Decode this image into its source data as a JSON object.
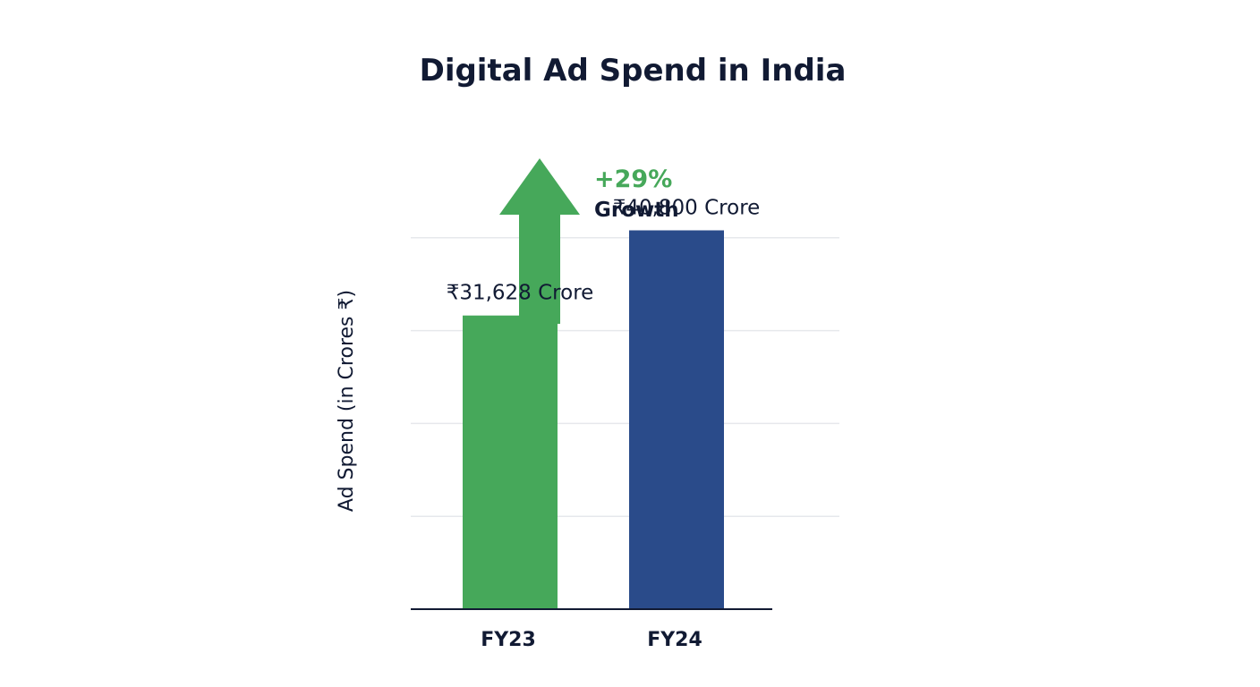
{
  "chart_data": {
    "type": "bar",
    "title": "Digital Ad Spend in India",
    "xlabel": "",
    "ylabel": "Ad Spend (in Crores ₹)",
    "categories": [
      "FY23",
      "FY24"
    ],
    "values": [
      31628,
      40800
    ],
    "data_labels": [
      "₹31,628 Crore",
      "₹40,800 Crore"
    ],
    "bar_colors": [
      "#46a85a",
      "#2a4b8a"
    ],
    "ylim": [
      0,
      50000
    ],
    "grid": true,
    "legend": "none",
    "annotation": {
      "value": "+29%",
      "text": "Growth",
      "color": "#46a85a",
      "arrow": "up-arrow-icon"
    }
  }
}
